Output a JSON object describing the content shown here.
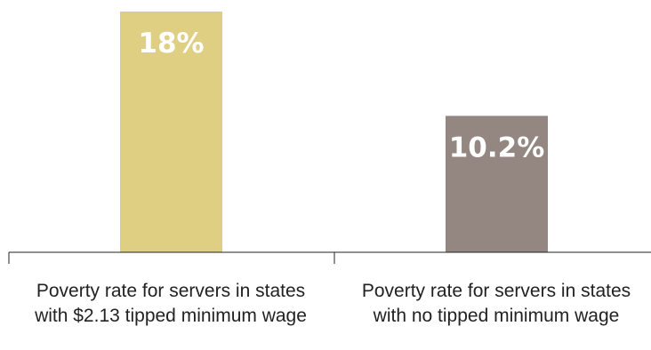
{
  "chart_data": {
    "type": "bar",
    "categories": [
      "Poverty rate for servers in states with $2.13 tipped minimum wage",
      "Poverty rate for servers in states with no tipped minimum wage"
    ],
    "values": [
      18,
      10.2
    ],
    "data_labels": [
      "18%",
      "10.2%"
    ],
    "colors": [
      "#dfcf83",
      "#948781"
    ],
    "unit": "%",
    "title": "",
    "xlabel": "",
    "ylabel": "",
    "ylim": [
      0,
      18
    ],
    "grid": false,
    "legend": "none"
  }
}
